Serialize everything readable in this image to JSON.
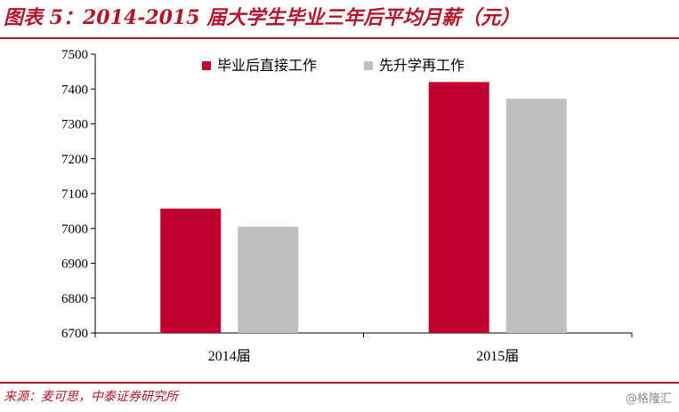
{
  "header": {
    "title": "图表 5：2014-2015 届大学生毕业三年后平均月薪（元）"
  },
  "footer": {
    "source": "来源：麦可思，中泰证券研究所",
    "watermark": "@格隆汇"
  },
  "colors": {
    "accent": "#b3162b",
    "series_1": "#c0002f",
    "series_2": "#bfbfbf"
  },
  "chart_data": {
    "type": "bar",
    "categories": [
      "2014届",
      "2015届"
    ],
    "series": [
      {
        "name": "毕业后直接工作",
        "values": [
          7057,
          7420
        ]
      },
      {
        "name": "先升学再工作",
        "values": [
          7005,
          7372
        ]
      }
    ],
    "ylim": [
      6700,
      7500
    ],
    "yticks": [
      6700,
      6800,
      6900,
      7000,
      7100,
      7200,
      7300,
      7400,
      7500
    ],
    "grid": false,
    "legend_position": "top-center"
  }
}
